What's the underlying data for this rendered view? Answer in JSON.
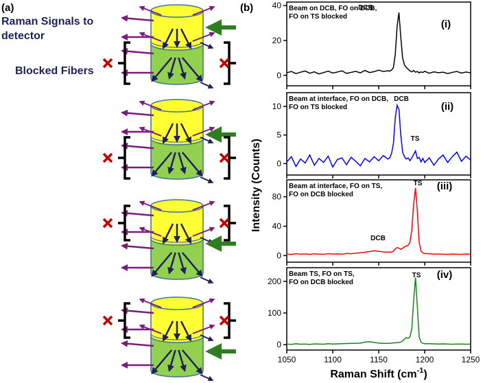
{
  "figure": {
    "panel_a_label": "(a)",
    "panel_b_label": "(b)",
    "legend_signal": [
      "Raman Signals to",
      "detector"
    ],
    "legend_blocked": "Blocked Fibers",
    "y_label": "Intensity (Counts)",
    "x_label": [
      "Raman Shift (cm",
      "-1",
      ")"
    ]
  },
  "chart_data": [
    {
      "type": "line",
      "panel": "(i)",
      "description": [
        "Beam on DCB, FO on DCB,",
        "FO on TS blocked"
      ],
      "annotations": [
        "DCB"
      ],
      "x": [
        1050,
        1055,
        1060,
        1065,
        1070,
        1075,
        1080,
        1085,
        1090,
        1095,
        1100,
        1105,
        1110,
        1115,
        1120,
        1125,
        1130,
        1135,
        1140,
        1145,
        1150,
        1155,
        1160,
        1162,
        1164,
        1166,
        1168,
        1170,
        1172,
        1174,
        1176,
        1178,
        1180,
        1182,
        1184,
        1186,
        1188,
        1190,
        1192,
        1194,
        1196,
        1198,
        1200,
        1205,
        1210,
        1215,
        1220,
        1225,
        1230,
        1235,
        1240,
        1245,
        1250
      ],
      "series": [
        {
          "color": "#000000",
          "values": [
            1.5,
            2.2,
            1.0,
            1.8,
            2.5,
            1.2,
            2.0,
            0.8,
            1.6,
            2.4,
            1.3,
            1.9,
            2.6,
            1.1,
            1.7,
            2.3,
            1.4,
            2.8,
            1.6,
            2.1,
            3.0,
            2.2,
            2.6,
            2.4,
            3.0,
            4.5,
            12,
            28,
            36,
            22,
            10,
            6,
            4.5,
            3.5,
            2.5,
            2.0,
            2.8,
            1.8,
            2.2,
            1.4,
            2.0,
            1.6,
            2.3,
            1.2,
            2.0,
            1.5,
            1.8,
            1.0,
            1.7,
            2.2,
            1.3,
            1.9,
            1.4
          ]
        }
      ],
      "xlim": [
        1050,
        1250
      ],
      "xticks": [
        1050,
        1100,
        1150,
        1200,
        1250
      ],
      "ylim": [
        -6,
        42
      ],
      "yticks": [
        0,
        20,
        40
      ]
    },
    {
      "type": "line",
      "panel": "(ii)",
      "description": [
        "Beam at interface, FO on DCB,",
        "FO on TS blocked"
      ],
      "annotations": [
        "DCB",
        "TS"
      ],
      "x": [
        1050,
        1055,
        1060,
        1065,
        1070,
        1075,
        1080,
        1085,
        1090,
        1095,
        1100,
        1105,
        1110,
        1115,
        1120,
        1125,
        1130,
        1135,
        1140,
        1145,
        1150,
        1155,
        1160,
        1162,
        1164,
        1166,
        1168,
        1170,
        1172,
        1174,
        1176,
        1178,
        1180,
        1182,
        1184,
        1186,
        1188,
        1190,
        1192,
        1194,
        1196,
        1198,
        1200,
        1205,
        1210,
        1215,
        1220,
        1225,
        1230,
        1235,
        1240,
        1245,
        1250
      ],
      "series": [
        {
          "color": "#0000ff",
          "values": [
            0.3,
            1.2,
            -0.5,
            0.8,
            0.1,
            1.5,
            -0.3,
            0.9,
            0.2,
            1.3,
            -0.6,
            0.7,
            1.0,
            -0.2,
            1.1,
            0.4,
            -0.4,
            0.9,
            0.3,
            1.2,
            0.5,
            1.4,
            0.8,
            1.0,
            1.8,
            3.5,
            8,
            10.2,
            9.5,
            5,
            2,
            1.2,
            0.8,
            1.0,
            0.5,
            1.0,
            1.6,
            2.2,
            0.9,
            1.1,
            0.3,
            0.9,
            0.2,
            1.0,
            -0.3,
            0.8,
            1.5,
            0.2,
            1.2,
            2.0,
            0.4,
            1.3,
            0.6
          ]
        }
      ],
      "xlim": [
        1050,
        1250
      ],
      "xticks": [
        1050,
        1100,
        1150,
        1200,
        1250
      ],
      "ylim": [
        -2,
        12.4
      ],
      "yticks": [
        0,
        5,
        10
      ]
    },
    {
      "type": "line",
      "panel": "(iii)",
      "description": [
        "Beam at interface, FO on TS,",
        "FO on DCB blocked"
      ],
      "annotations": [
        "TS",
        "DCB"
      ],
      "x": [
        1050,
        1055,
        1060,
        1065,
        1070,
        1075,
        1080,
        1085,
        1090,
        1095,
        1100,
        1105,
        1110,
        1115,
        1120,
        1125,
        1130,
        1135,
        1140,
        1145,
        1150,
        1155,
        1160,
        1162,
        1164,
        1166,
        1168,
        1170,
        1172,
        1174,
        1176,
        1178,
        1180,
        1182,
        1184,
        1186,
        1188,
        1190,
        1192,
        1194,
        1196,
        1198,
        1200,
        1205,
        1210,
        1215,
        1220,
        1225,
        1230,
        1235,
        1240,
        1245,
        1250
      ],
      "series": [
        {
          "color": "#ff0000",
          "values": [
            2,
            1.5,
            2.5,
            1.8,
            2.2,
            1.6,
            2.4,
            2,
            1.7,
            2.6,
            2.1,
            2.3,
            1.8,
            2.9,
            2.5,
            3.2,
            3.8,
            4.5,
            5.5,
            6.5,
            5.8,
            5,
            4.5,
            5,
            4.5,
            6,
            9,
            11,
            10,
            8.5,
            10,
            12,
            13,
            14,
            18,
            35,
            70,
            92,
            60,
            18,
            6,
            3.5,
            2.8,
            2.5,
            2,
            2.2,
            1.8,
            1.6,
            2.1,
            1.9,
            1.7,
            2,
            1.8
          ]
        }
      ],
      "xlim": [
        1050,
        1250
      ],
      "xticks": [
        1050,
        1100,
        1150,
        1200,
        1250
      ],
      "ylim": [
        -9,
        103
      ],
      "yticks": [
        0,
        40,
        80
      ]
    },
    {
      "type": "line",
      "panel": "(iv)",
      "description": [
        "Beam TS, FO on TS,",
        "FO on DCB blocked"
      ],
      "annotations": [
        "TS"
      ],
      "x": [
        1050,
        1055,
        1060,
        1065,
        1070,
        1075,
        1080,
        1085,
        1090,
        1095,
        1100,
        1105,
        1110,
        1115,
        1120,
        1125,
        1130,
        1135,
        1140,
        1145,
        1150,
        1155,
        1160,
        1162,
        1164,
        1166,
        1168,
        1170,
        1172,
        1174,
        1176,
        1178,
        1180,
        1182,
        1184,
        1186,
        1188,
        1190,
        1192,
        1194,
        1196,
        1198,
        1200,
        1205,
        1210,
        1215,
        1220,
        1225,
        1230,
        1235,
        1240,
        1245,
        1250
      ],
      "series": [
        {
          "color": "#118811",
          "values": [
            2,
            1,
            3,
            1.5,
            2,
            1,
            2.5,
            2,
            1.5,
            3,
            2,
            2.5,
            3,
            3.5,
            4,
            4.5,
            5,
            8,
            9,
            7,
            5,
            4,
            4,
            4,
            5,
            5.5,
            6,
            6.5,
            7,
            8,
            12,
            18,
            22,
            20,
            25,
            50,
            140,
            212,
            120,
            25,
            8,
            4,
            3,
            3,
            2.5,
            2,
            2.5,
            2,
            1.5,
            2,
            2,
            1.5,
            2
          ]
        }
      ],
      "xlim": [
        1050,
        1250
      ],
      "xticks": [
        1050,
        1100,
        1150,
        1200,
        1250
      ],
      "ylim": [
        -17,
        243
      ],
      "yticks": [
        0,
        100,
        200
      ]
    }
  ]
}
